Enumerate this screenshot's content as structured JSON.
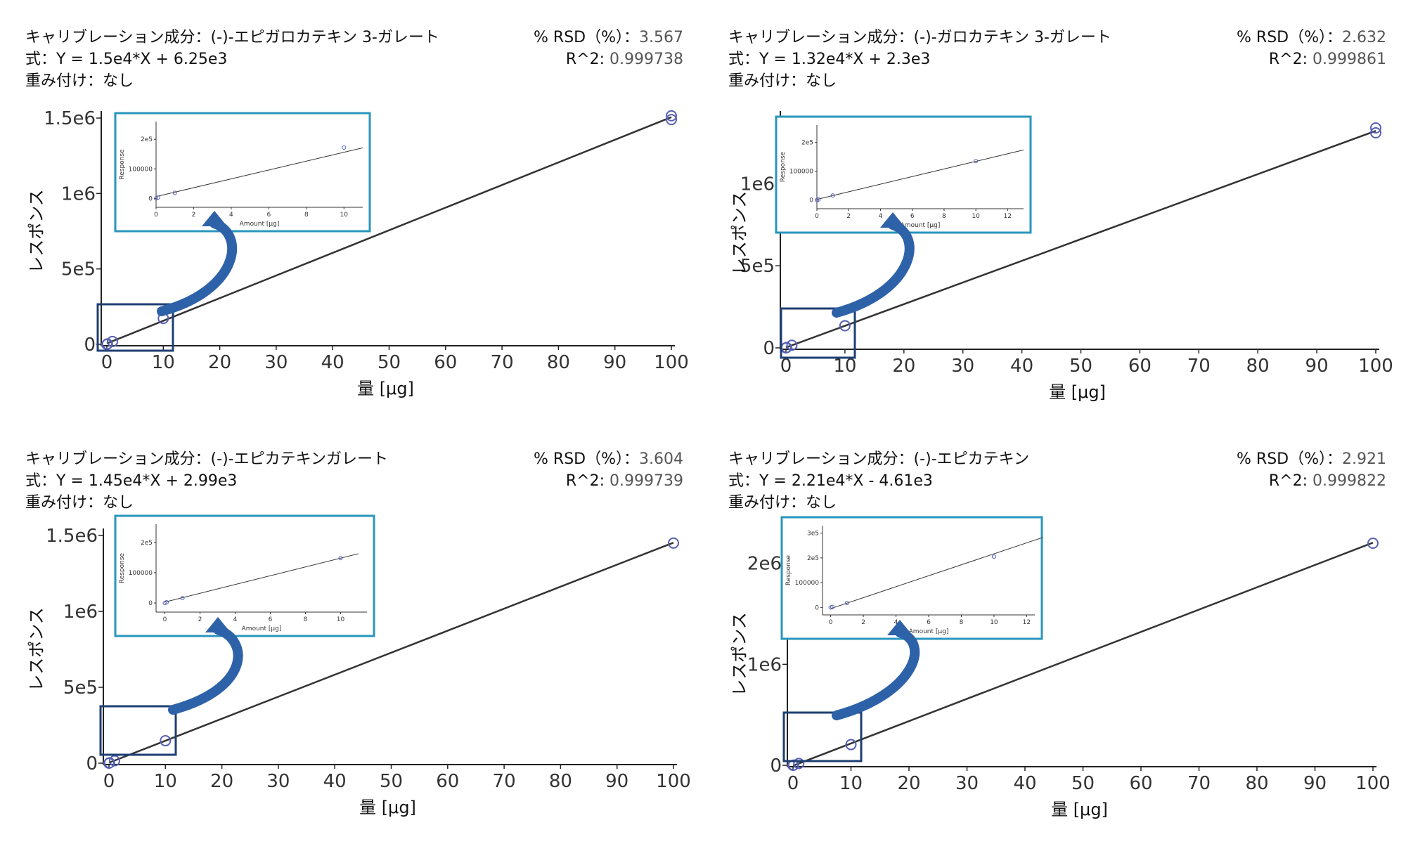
{
  "colors": {
    "inset_frame": "#2996bd",
    "zoom_box": "#1f3f73",
    "arrow": "#2e62a8",
    "point": "#5560b5",
    "line": "#333333"
  },
  "chart_data": [
    {
      "type": "scatter",
      "compound_label": "キャリブレーション成分：(-)-エピガロカテキン 3-ガレート",
      "equation": "式：Y = 1.5e4*X + 6.25e3",
      "weighting": "重み付け：なし",
      "rsd_label": "% RSD（%）：",
      "rsd_value": "3.567",
      "r2_label": "R^2:",
      "r2_value": "0.999738",
      "xlabel": "量 [μg]",
      "ylabel": "レスポンス",
      "xlim": [
        0,
        100
      ],
      "ylim": [
        0,
        1500000
      ],
      "xticks": [
        0,
        10,
        20,
        30,
        40,
        50,
        60,
        70,
        80,
        90,
        100
      ],
      "yticks": [
        {
          "v": 0,
          "label": "0"
        },
        {
          "v": 500000,
          "label": "5e5"
        },
        {
          "v": 1000000,
          "label": "1e6"
        },
        {
          "v": 1500000,
          "label": "1.5e6"
        }
      ],
      "points": [
        [
          0,
          0
        ],
        [
          0.1,
          3000
        ],
        [
          1,
          19000
        ],
        [
          10,
          172000
        ],
        [
          100,
          1490000
        ],
        [
          100,
          1515000
        ]
      ],
      "fit": {
        "slope": 15000,
        "intercept": 6250
      },
      "inset": {
        "xlabel": "Amount [μg]",
        "ylabel": "Response",
        "xlim": [
          0,
          11
        ],
        "ylim": [
          -30000,
          260000
        ],
        "xticks": [
          0,
          2,
          4,
          6,
          8,
          10
        ],
        "yticks": [
          {
            "v": 0,
            "label": "0"
          },
          {
            "v": 100000,
            "label": "100000"
          },
          {
            "v": 200000,
            "label": "2e5"
          }
        ]
      }
    },
    {
      "type": "scatter",
      "compound_label": "キャリブレーション成分：(-)-ガロカテキン 3-ガレート",
      "equation": "式：Y = 1.32e4*X + 2.3e3",
      "weighting": "重み付け：なし",
      "rsd_label": "% RSD（%）：",
      "rsd_value": "2.632",
      "r2_label": "R^2:",
      "r2_value": "0.999861",
      "xlabel": "量 [μg]",
      "ylabel": "レスポンス",
      "xlim": [
        0,
        100
      ],
      "ylim": [
        0,
        1400000
      ],
      "xticks": [
        0,
        10,
        20,
        30,
        40,
        50,
        60,
        70,
        80,
        90,
        100
      ],
      "yticks": [
        {
          "v": 0,
          "label": "0"
        },
        {
          "v": 500000,
          "label": "5e5"
        },
        {
          "v": 1000000,
          "label": "1e6"
        }
      ],
      "points": [
        [
          0,
          0
        ],
        [
          0.1,
          2000
        ],
        [
          1,
          16000
        ],
        [
          10,
          135000
        ],
        [
          100,
          1310000
        ],
        [
          100,
          1340000
        ]
      ],
      "fit": {
        "slope": 13200,
        "intercept": 2300
      },
      "inset": {
        "xlabel": "Amount [μg]",
        "ylabel": "Response",
        "xlim": [
          0,
          13
        ],
        "ylim": [
          -30000,
          260000
        ],
        "xticks": [
          0,
          2,
          4,
          6,
          8,
          10,
          12
        ],
        "yticks": [
          {
            "v": 0,
            "label": "0"
          },
          {
            "v": 100000,
            "label": "100000"
          },
          {
            "v": 200000,
            "label": "2e5"
          }
        ]
      }
    },
    {
      "type": "scatter",
      "compound_label": "キャリブレーション成分：(-)-エピカテキンガレート",
      "equation": "式：Y = 1.45e4*X + 2.99e3",
      "weighting": "重み付け：なし",
      "rsd_label": "% RSD（%）：",
      "rsd_value": "3.604",
      "r2_label": "R^2:",
      "r2_value": "0.999739",
      "xlabel": "量 [μg]",
      "ylabel": "レスポンス",
      "xlim": [
        0,
        100
      ],
      "ylim": [
        0,
        1500000
      ],
      "xticks": [
        0,
        10,
        20,
        30,
        40,
        50,
        60,
        70,
        80,
        90,
        100
      ],
      "yticks": [
        {
          "v": 0,
          "label": "0"
        },
        {
          "v": 500000,
          "label": "5e5"
        },
        {
          "v": 1000000,
          "label": "1e6"
        },
        {
          "v": 1500000,
          "label": "1.5e6"
        }
      ],
      "points": [
        [
          0,
          0
        ],
        [
          0.1,
          2500
        ],
        [
          1,
          16000
        ],
        [
          10,
          148000
        ],
        [
          100,
          1450000
        ]
      ],
      "fit": {
        "slope": 14500,
        "intercept": 2990
      },
      "inset": {
        "xlabel": "Amount [μg]",
        "ylabel": "Response",
        "xlim": [
          -0.5,
          11.5
        ],
        "ylim": [
          -30000,
          260000
        ],
        "xticks": [
          0,
          2,
          4,
          6,
          8,
          10
        ],
        "yticks": [
          {
            "v": 0,
            "label": "0"
          },
          {
            "v": 100000,
            "label": "100000"
          },
          {
            "v": 200000,
            "label": "2e5"
          }
        ]
      }
    },
    {
      "type": "scatter",
      "compound_label": "キャリブレーション成分：(-)-エピカテキン",
      "equation": "式：Y = 2.21e4*X - 4.61e3",
      "weighting": "重み付け：なし",
      "rsd_label": "% RSD（%）：",
      "rsd_value": "2.921",
      "r2_label": "R^2:",
      "r2_value": "0.999822",
      "xlabel": "量 [μg]",
      "ylabel": "レスポンス",
      "xlim": [
        0,
        100
      ],
      "ylim": [
        0,
        2200000
      ],
      "xticks": [
        0,
        10,
        20,
        30,
        40,
        50,
        60,
        70,
        80,
        90,
        100
      ],
      "yticks": [
        {
          "v": 0,
          "label": "0"
        },
        {
          "v": 1000000,
          "label": "1e6"
        },
        {
          "v": 2000000,
          "label": "2e6"
        }
      ],
      "points": [
        [
          0,
          0
        ],
        [
          0.1,
          2000
        ],
        [
          1,
          18000
        ],
        [
          10,
          205000
        ],
        [
          100,
          2200000
        ]
      ],
      "fit": {
        "slope": 22100,
        "intercept": -4610
      },
      "inset": {
        "xlabel": "Amount [μg]",
        "ylabel": "Response",
        "xlim": [
          -0.5,
          12.5
        ],
        "ylim": [
          -30000,
          330000
        ],
        "xticks": [
          0,
          2,
          4,
          6,
          8,
          10,
          12
        ],
        "yticks": [
          {
            "v": 0,
            "label": "0"
          },
          {
            "v": 100000,
            "label": "100000"
          },
          {
            "v": 200000,
            "label": "2e5"
          },
          {
            "v": 300000,
            "label": "3e5"
          }
        ]
      }
    }
  ]
}
